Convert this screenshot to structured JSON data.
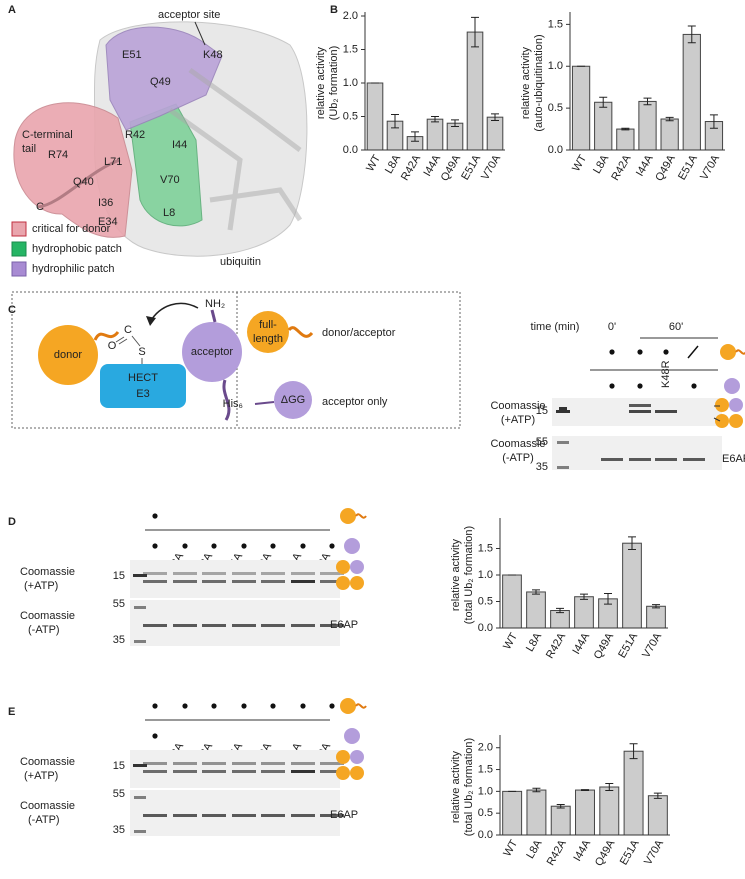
{
  "panel_a": {
    "label": "A",
    "annotation": "acceptor site",
    "tail": [
      "C-terminal",
      "tail"
    ],
    "residues": [
      "E51",
      "K48",
      "Q49",
      "R42",
      "I44",
      "R74",
      "L71",
      "V70",
      "Q40",
      "I36",
      "L8",
      "C",
      "E34"
    ],
    "protein": "ubiquitin",
    "legend": [
      "critical for donor",
      "hydrophobic patch",
      "hydrophilic patch"
    ]
  },
  "panel_b": {
    "label": "B"
  },
  "panel_c": {
    "label": "C",
    "scheme": {
      "donor": "donor",
      "e3": [
        "HECT",
        "E3"
      ],
      "thioester": [
        "C",
        "O",
        "S"
      ],
      "amine": "NH₂",
      "acceptor": "acceptor",
      "full_length": [
        "full-",
        "length"
      ],
      "donor_acceptor": "donor/acceptor",
      "tag": "His₆",
      "delta": "ΔGG",
      "acceptor_only": "acceptor only"
    },
    "gel": {
      "time_label": "time (min)",
      "times": [
        "0'",
        "60'"
      ],
      "mutant": "K48R",
      "stains": [
        [
          "Coomassie",
          "(+ATP)"
        ],
        [
          "Coomassie",
          "(-ATP)"
        ]
      ],
      "markers": [
        "15",
        "55",
        "35"
      ],
      "band": "E6AP"
    }
  },
  "panel_d": {
    "label": "D",
    "lanes": [
      "L8A",
      "R42A",
      "I44A",
      "Q49A",
      "E51A",
      "V70A"
    ],
    "stains": [
      [
        "Coomassie",
        "(+ATP)"
      ],
      [
        "Coomassie",
        "(-ATP)"
      ]
    ],
    "markers": [
      "15",
      "55",
      "35"
    ],
    "band": "E6AP"
  },
  "panel_e": {
    "label": "E",
    "lanes": [
      "L8A",
      "R42A",
      "I44A",
      "Q49A",
      "E51A",
      "V70A"
    ],
    "stains": [
      [
        "Coomassie",
        "(+ATP)"
      ],
      [
        "Coomassie",
        "(-ATP)"
      ]
    ],
    "markers": [
      "15",
      "55",
      "35"
    ],
    "band": "E6AP"
  },
  "chart_data": [
    {
      "type": "bar",
      "ylabel": [
        "relative activity",
        "(Ub₂ formation)"
      ],
      "categories": [
        "WT",
        "L8A",
        "R42A",
        "I44A",
        "Q49A",
        "E51A",
        "V70A"
      ],
      "values": [
        1.0,
        0.43,
        0.2,
        0.46,
        0.4,
        1.76,
        0.49
      ],
      "errors": [
        0,
        0.1,
        0.07,
        0.04,
        0.05,
        0.22,
        0.05
      ],
      "color": "#cccccc",
      "ylim": [
        0,
        2.0
      ],
      "yticks": [
        {
          "value": 0,
          "label": "0.0"
        },
        0.5,
        {
          "value": 1,
          "label": "1.0"
        },
        1.5,
        {
          "value": 2,
          "label": "2.0"
        }
      ]
    },
    {
      "type": "bar",
      "ylabel": [
        "relative activity",
        "(auto-ubiquitination)"
      ],
      "categories": [
        "WT",
        "L8A",
        "R42A",
        "I44A",
        "Q49A",
        "E51A",
        "V70A"
      ],
      "values": [
        1.0,
        0.57,
        0.25,
        0.58,
        0.37,
        1.38,
        0.34
      ],
      "errors": [
        0,
        0.06,
        0.01,
        0.04,
        0.02,
        0.1,
        0.08
      ],
      "color": "#cccccc",
      "ylim": [
        0,
        1.6
      ],
      "yticks": [
        {
          "value": 0,
          "label": "0.0"
        },
        0.5,
        {
          "value": 1,
          "label": "1.0"
        },
        1.5
      ]
    },
    {
      "type": "bar",
      "ylabel": [
        "relative activity",
        "(total Ub₂ formation)"
      ],
      "categories": [
        "WT",
        "L8A",
        "R42A",
        "I44A",
        "Q49A",
        "E51A",
        "V70A"
      ],
      "values": [
        1.0,
        0.68,
        0.33,
        0.59,
        0.55,
        1.6,
        0.41
      ],
      "errors": [
        0,
        0.04,
        0.04,
        0.05,
        0.1,
        0.12,
        0.03
      ],
      "color": "#cccccc",
      "ylim": [
        0,
        2.0
      ],
      "yticks": [
        {
          "value": 0,
          "label": "0.0"
        },
        0.5,
        {
          "value": 1,
          "label": "1.0"
        },
        1.5
      ]
    },
    {
      "type": "bar",
      "ylabel": [
        "relative activity",
        "(total Ub₂ formation)"
      ],
      "categories": [
        "WT",
        "L8A",
        "R42A",
        "I44A",
        "Q49A",
        "E51A",
        "V70A"
      ],
      "values": [
        1.0,
        1.03,
        0.66,
        1.03,
        1.1,
        1.92,
        0.9
      ],
      "errors": [
        0,
        0.04,
        0.04,
        0.01,
        0.08,
        0.17,
        0.06
      ],
      "color": "#cccccc",
      "ylim": [
        0,
        2.2
      ],
      "yticks": [
        {
          "value": 0,
          "label": "0.0"
        },
        0.5,
        {
          "value": 1,
          "label": "1.0"
        },
        1.5,
        {
          "value": 2,
          "label": "2.0"
        }
      ]
    }
  ]
}
